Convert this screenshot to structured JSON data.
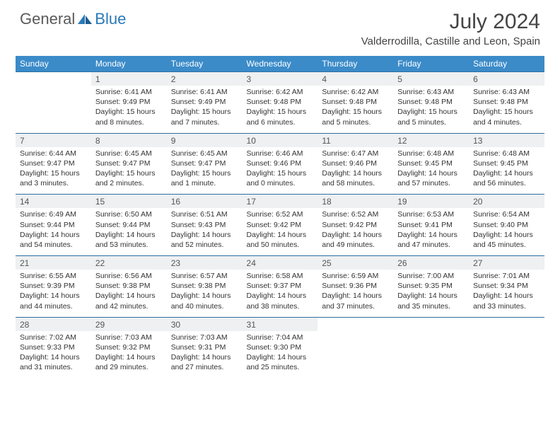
{
  "brand": {
    "general": "General",
    "blue": "Blue"
  },
  "title": "July 2024",
  "location": "Valderrodilla, Castille and Leon, Spain",
  "colors": {
    "header_bg": "#3b8bc9",
    "header_text": "#ffffff",
    "daynum_bg": "#eef0f1",
    "rule": "#2b6fa3",
    "body_text": "#333333",
    "title_text": "#444444",
    "brand_gray": "#5a5a5a",
    "brand_blue": "#2a7ab8"
  },
  "weekdays": [
    "Sunday",
    "Monday",
    "Tuesday",
    "Wednesday",
    "Thursday",
    "Friday",
    "Saturday"
  ],
  "grid": {
    "first_weekday_index": 1,
    "days_in_month": 31
  },
  "days": {
    "1": {
      "sunrise": "6:41 AM",
      "sunset": "9:49 PM",
      "daylight": "15 hours and 8 minutes."
    },
    "2": {
      "sunrise": "6:41 AM",
      "sunset": "9:49 PM",
      "daylight": "15 hours and 7 minutes."
    },
    "3": {
      "sunrise": "6:42 AM",
      "sunset": "9:48 PM",
      "daylight": "15 hours and 6 minutes."
    },
    "4": {
      "sunrise": "6:42 AM",
      "sunset": "9:48 PM",
      "daylight": "15 hours and 5 minutes."
    },
    "5": {
      "sunrise": "6:43 AM",
      "sunset": "9:48 PM",
      "daylight": "15 hours and 5 minutes."
    },
    "6": {
      "sunrise": "6:43 AM",
      "sunset": "9:48 PM",
      "daylight": "15 hours and 4 minutes."
    },
    "7": {
      "sunrise": "6:44 AM",
      "sunset": "9:47 PM",
      "daylight": "15 hours and 3 minutes."
    },
    "8": {
      "sunrise": "6:45 AM",
      "sunset": "9:47 PM",
      "daylight": "15 hours and 2 minutes."
    },
    "9": {
      "sunrise": "6:45 AM",
      "sunset": "9:47 PM",
      "daylight": "15 hours and 1 minute."
    },
    "10": {
      "sunrise": "6:46 AM",
      "sunset": "9:46 PM",
      "daylight": "15 hours and 0 minutes."
    },
    "11": {
      "sunrise": "6:47 AM",
      "sunset": "9:46 PM",
      "daylight": "14 hours and 58 minutes."
    },
    "12": {
      "sunrise": "6:48 AM",
      "sunset": "9:45 PM",
      "daylight": "14 hours and 57 minutes."
    },
    "13": {
      "sunrise": "6:48 AM",
      "sunset": "9:45 PM",
      "daylight": "14 hours and 56 minutes."
    },
    "14": {
      "sunrise": "6:49 AM",
      "sunset": "9:44 PM",
      "daylight": "14 hours and 54 minutes."
    },
    "15": {
      "sunrise": "6:50 AM",
      "sunset": "9:44 PM",
      "daylight": "14 hours and 53 minutes."
    },
    "16": {
      "sunrise": "6:51 AM",
      "sunset": "9:43 PM",
      "daylight": "14 hours and 52 minutes."
    },
    "17": {
      "sunrise": "6:52 AM",
      "sunset": "9:42 PM",
      "daylight": "14 hours and 50 minutes."
    },
    "18": {
      "sunrise": "6:52 AM",
      "sunset": "9:42 PM",
      "daylight": "14 hours and 49 minutes."
    },
    "19": {
      "sunrise": "6:53 AM",
      "sunset": "9:41 PM",
      "daylight": "14 hours and 47 minutes."
    },
    "20": {
      "sunrise": "6:54 AM",
      "sunset": "9:40 PM",
      "daylight": "14 hours and 45 minutes."
    },
    "21": {
      "sunrise": "6:55 AM",
      "sunset": "9:39 PM",
      "daylight": "14 hours and 44 minutes."
    },
    "22": {
      "sunrise": "6:56 AM",
      "sunset": "9:38 PM",
      "daylight": "14 hours and 42 minutes."
    },
    "23": {
      "sunrise": "6:57 AM",
      "sunset": "9:38 PM",
      "daylight": "14 hours and 40 minutes."
    },
    "24": {
      "sunrise": "6:58 AM",
      "sunset": "9:37 PM",
      "daylight": "14 hours and 38 minutes."
    },
    "25": {
      "sunrise": "6:59 AM",
      "sunset": "9:36 PM",
      "daylight": "14 hours and 37 minutes."
    },
    "26": {
      "sunrise": "7:00 AM",
      "sunset": "9:35 PM",
      "daylight": "14 hours and 35 minutes."
    },
    "27": {
      "sunrise": "7:01 AM",
      "sunset": "9:34 PM",
      "daylight": "14 hours and 33 minutes."
    },
    "28": {
      "sunrise": "7:02 AM",
      "sunset": "9:33 PM",
      "daylight": "14 hours and 31 minutes."
    },
    "29": {
      "sunrise": "7:03 AM",
      "sunset": "9:32 PM",
      "daylight": "14 hours and 29 minutes."
    },
    "30": {
      "sunrise": "7:03 AM",
      "sunset": "9:31 PM",
      "daylight": "14 hours and 27 minutes."
    },
    "31": {
      "sunrise": "7:04 AM",
      "sunset": "9:30 PM",
      "daylight": "14 hours and 25 minutes."
    }
  },
  "labels": {
    "sunrise": "Sunrise:",
    "sunset": "Sunset:",
    "daylight": "Daylight:"
  }
}
